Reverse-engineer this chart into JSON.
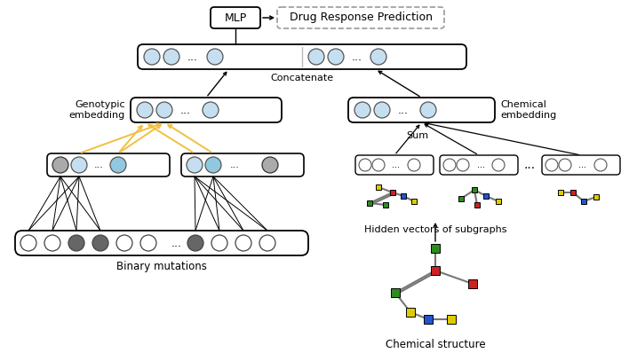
{
  "bg_color": "#ffffff",
  "node_light_blue": "#c5dff0",
  "node_white": "#ffffff",
  "node_gray": "#aaaaaa",
  "node_dark_gray": "#666666",
  "yellow_arrow": "#f0c040",
  "label_concatenate": "Concatenate",
  "label_sum": "Sum",
  "label_genotypic": "Genotypic\nembedding",
  "label_chemical": "Chemical\nembedding",
  "label_binary": "Binary mutations",
  "label_chemical_struct": "Chemical structure",
  "label_hidden": "Hidden vectors of subgraphs",
  "label_mlp": "MLP",
  "label_drp": "Drug Response Prediction",
  "sq_green": "#2e8b20",
  "sq_red": "#cc2222",
  "sq_blue": "#2255cc",
  "sq_yellow": "#ddcc00"
}
